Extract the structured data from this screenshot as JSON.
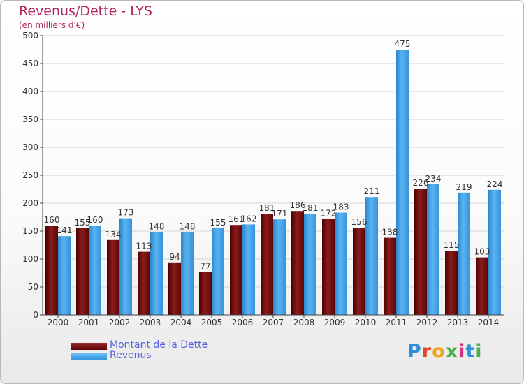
{
  "chart_data": {
    "type": "bar",
    "title": "Revenus/Dette - LYS",
    "subtitle": "(en milliers d'€)",
    "categories": [
      "2000",
      "2001",
      "2002",
      "2003",
      "2004",
      "2005",
      "2006",
      "2007",
      "2008",
      "2009",
      "2010",
      "2011",
      "2012",
      "2013",
      "2014"
    ],
    "series": [
      {
        "name": "Montant de la Dette",
        "color": "#7a1010",
        "values": [
          160,
          155,
          134,
          113,
          94,
          77,
          161,
          181,
          186,
          172,
          156,
          138,
          226,
          115,
          103
        ]
      },
      {
        "name": "Revenus",
        "color": "#3f9ee6",
        "values": [
          141,
          160,
          173,
          148,
          148,
          155,
          162,
          171,
          181,
          183,
          211,
          475,
          234,
          219,
          224
        ]
      }
    ],
    "ylim": [
      0,
      500
    ],
    "yticks": [
      0,
      50,
      100,
      150,
      200,
      250,
      300,
      350,
      400,
      450,
      500
    ],
    "xlabel": "",
    "ylabel": "",
    "grid": true,
    "legend_position": "bottom-left"
  },
  "logo": {
    "text": "Proxiti"
  }
}
